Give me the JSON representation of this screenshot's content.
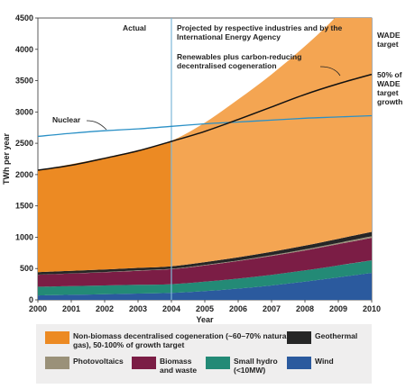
{
  "chart_data": {
    "type": "area",
    "xlabel": "Year",
    "ylabel": "TWh per year",
    "xlim": [
      2000,
      2010
    ],
    "ylim": [
      0,
      4500
    ],
    "x_ticks": [
      "2000",
      "2001",
      "2002",
      "2003",
      "2004",
      "2005",
      "2006",
      "2007",
      "2008",
      "2009",
      "2010"
    ],
    "y_ticks": [
      "0",
      "500",
      "1000",
      "1500",
      "2000",
      "2500",
      "3000",
      "3500",
      "4000",
      "4500"
    ],
    "x": [
      2000,
      2001,
      2002,
      2003,
      2004,
      2005,
      2006,
      2007,
      2008,
      2009,
      2010
    ],
    "stacked_series": [
      {
        "name": "Wind",
        "color": "#2b5a9e",
        "values": [
          70,
          80,
          90,
          100,
          110,
          140,
          180,
          230,
          290,
          360,
          430
        ]
      },
      {
        "name": "Small hydro (<10MW)",
        "color": "#238a76",
        "values": [
          140,
          140,
          140,
          140,
          140,
          150,
          160,
          170,
          180,
          190,
          200
        ]
      },
      {
        "name": "Biomass and waste",
        "color": "#7b1d45",
        "values": [
          190,
          200,
          210,
          225,
          240,
          260,
          280,
          300,
          320,
          340,
          360
        ]
      },
      {
        "name": "Photovoltaics",
        "color": "#9a9179",
        "values": [
          2,
          3,
          4,
          5,
          6,
          8,
          10,
          13,
          16,
          20,
          25
        ]
      },
      {
        "name": "Geothermal",
        "color": "#262626",
        "values": [
          40,
          40,
          40,
          40,
          40,
          45,
          50,
          55,
          60,
          65,
          70
        ]
      },
      {
        "name": "Non-biomass decentralised cogeneration (~60–70% natural gas), 50-100% of growth target",
        "color": "#ec8a23",
        "values": [
          1628,
          1702,
          1786,
          1880,
          2004,
          2227,
          2520,
          2832,
          3184,
          3585,
          4115
        ]
      }
    ],
    "projection_start": 2004,
    "projection_color": "#f4a552",
    "lines": [
      {
        "name": "Nuclear",
        "color": "#2a90c6",
        "values": [
          2610,
          2660,
          2700,
          2730,
          2770,
          2810,
          2840,
          2870,
          2900,
          2920,
          2940
        ]
      },
      {
        "name": "Renewables plus carbon-reducing decentralised cogeneration",
        "color": "#111111",
        "values": [
          2070,
          2150,
          2260,
          2380,
          2530,
          2690,
          2880,
          3080,
          3280,
          3450,
          3600
        ]
      }
    ],
    "annotations": {
      "actual": "Actual",
      "projected": "Projected by respective industries and by the International Energy Agency",
      "renewables": "Renewables plus carbon-reducing decentralised cogeneration",
      "nuclear": "Nuclear",
      "wade_target": "WADE target",
      "wade_growth": "50% of WADE target growth"
    }
  }
}
